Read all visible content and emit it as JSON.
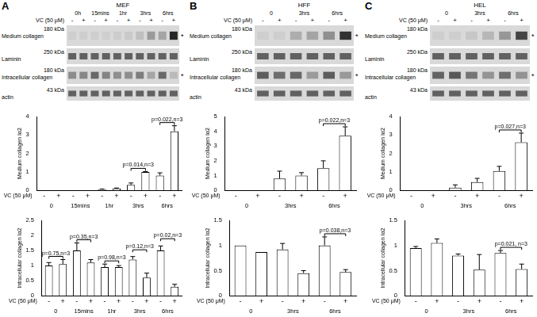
{
  "panels": [
    {
      "letter": "A",
      "cell_line": "MEF",
      "treatment": "VC (50 μM)",
      "times": [
        "0h",
        "15mins",
        "1hr",
        "3hrs",
        "6hrs"
      ],
      "lanes": [
        "-",
        "+"
      ],
      "rows": [
        {
          "name": "Medium collagen",
          "kda_label": "180 kDa",
          "asterisk": "*"
        },
        {
          "name": "Laminin",
          "kda_label": "250 kDa"
        },
        {
          "name": "Intracellular collagen",
          "kda_label": "180 kDa",
          "asterisk": "*"
        },
        {
          "name": "actin",
          "kda_label": "43 kDa"
        }
      ]
    },
    {
      "letter": "B",
      "cell_line": "HFF",
      "treatment": "VC (50 μM)",
      "times": [
        "0",
        "3hrs",
        "6hrs"
      ],
      "lanes": [
        "-",
        "+"
      ],
      "rows": [
        {
          "name": "Medium collagen",
          "kda_label": "180 kDa",
          "asterisk": "*"
        },
        {
          "name": "Laminin",
          "kda_label": "250 kDa"
        },
        {
          "name": "Intracellular collagen",
          "kda_label": "180 kDa",
          "asterisk": "*"
        },
        {
          "name": "actin",
          "kda_label": "43 kDa"
        }
      ]
    },
    {
      "letter": "C",
      "cell_line": "HEL",
      "treatment": "VC (50 μM)",
      "times": [
        "0",
        "3hrs",
        "6hrs"
      ],
      "lanes": [
        "-",
        "+"
      ],
      "rows": [
        {
          "name": "Medium collagen",
          "kda_label": "180 kDa",
          "asterisk": "*"
        },
        {
          "name": "Laminin",
          "kda_label": "250 kDa"
        },
        {
          "name": "Intracellular collagen",
          "kda_label": "180 kDa",
          "asterisk": "*"
        },
        {
          "name": "actin",
          "kda_label": "43 kDa"
        }
      ]
    }
  ],
  "chart_data": [
    {
      "type": "bar",
      "ylabel": "Medium collagen Iα2",
      "treatment": "VC (50 μM)",
      "categories": [
        "-",
        "+",
        "-",
        "+",
        "-",
        "+",
        "-",
        "+",
        "-",
        "+"
      ],
      "groups": [
        "0",
        "15mins",
        "1hr",
        "3hrs",
        "6hrs"
      ],
      "values": [
        0,
        0,
        0,
        0,
        0.05,
        0.1,
        0.3,
        1.0,
        0.8,
        3.2
      ],
      "errors": [
        0,
        0,
        0,
        0,
        0.02,
        0.03,
        0.1,
        0.02,
        0.15,
        0.3
      ],
      "color": "#ffffff",
      "ylim": [
        0,
        4
      ],
      "yticks": [
        0,
        1,
        2,
        3,
        4
      ],
      "grid": false,
      "annotations": [
        {
          "text": "p=0.014,n=3",
          "group": "3hrs"
        },
        {
          "text": "p=0.022,n=3",
          "group": "6hrs"
        }
      ]
    },
    {
      "type": "bar",
      "ylabel": "Intracellular collagen Iα2",
      "treatment": "VC (50 μM)",
      "categories": [
        "-",
        "+",
        "-",
        "+",
        "-",
        "+",
        "-",
        "+",
        "-",
        "+"
      ],
      "groups": [
        "0",
        "15mins",
        "1hr",
        "3hrs",
        "6hrs"
      ],
      "values": [
        1.0,
        1.05,
        1.5,
        1.1,
        0.95,
        0.95,
        1.2,
        0.6,
        1.5,
        0.3
      ],
      "errors": [
        0.1,
        0.15,
        0.25,
        0.1,
        0.1,
        0.05,
        0.1,
        0.15,
        0.15,
        0.08
      ],
      "color": "#ffffff",
      "ylim": [
        0,
        2.5
      ],
      "yticks": [
        0,
        0.5,
        1,
        1.5,
        2,
        2.5
      ],
      "grid": false,
      "annotations": [
        {
          "text": "p=0.75,n=3",
          "group": "0"
        },
        {
          "text": "p=0.35,n=3",
          "group": "15mins"
        },
        {
          "text": "p=0.98,n=3",
          "group": "1hr"
        },
        {
          "text": "p=0.12,n=3",
          "group": "3hrs"
        },
        {
          "text": "p=0.02,n=3",
          "group": "6hrs"
        }
      ]
    },
    {
      "type": "bar",
      "ylabel": "Medium collagen Iα2",
      "treatment": "VC (50 μM)",
      "categories": [
        "-",
        "+",
        "-",
        "+",
        "-",
        "+"
      ],
      "groups": [
        "0",
        "3hrs",
        "6hrs"
      ],
      "values": [
        0,
        0,
        0.8,
        1.0,
        1.5,
        3.7
      ],
      "errors": [
        0,
        0,
        0.5,
        0.2,
        0.5,
        0.6
      ],
      "color": "#ffffff",
      "ylim": [
        0,
        5
      ],
      "yticks": [
        0,
        1,
        2,
        3,
        4,
        5
      ],
      "grid": false,
      "annotations": [
        {
          "text": "p=0.022,n=3",
          "group": "6hrs"
        }
      ]
    },
    {
      "type": "bar",
      "ylabel": "Intracellular collagen Iα2",
      "treatment": "VC (50 μM)",
      "categories": [
        "-",
        "+",
        "-",
        "+",
        "-",
        "+"
      ],
      "groups": [
        "0",
        "3hrs",
        "6hrs"
      ],
      "values": [
        1.0,
        0.87,
        0.92,
        0.45,
        1.0,
        0.47
      ],
      "errors": [
        0,
        0,
        0.12,
        0.05,
        0.17,
        0.05
      ],
      "color": "#ffffff",
      "ylim": [
        0,
        1.5
      ],
      "yticks": [
        0,
        0.5,
        1,
        1.5
      ],
      "grid": false,
      "annotations": [
        {
          "text": "p=0.038,n=3",
          "group": "6hrs"
        }
      ]
    },
    {
      "type": "bar",
      "ylabel": "Medium collagen Iα2",
      "treatment": "VC (50 μM)",
      "categories": [
        "-",
        "+",
        "-",
        "+",
        "-",
        "+"
      ],
      "groups": [
        "0",
        "3hrs",
        "6hrs"
      ],
      "values": [
        0,
        0,
        0.15,
        0.45,
        1.05,
        2.6
      ],
      "errors": [
        0,
        0,
        0.15,
        0.2,
        0.25,
        0.5
      ],
      "color": "#ffffff",
      "ylim": [
        0,
        4
      ],
      "yticks": [
        0,
        1,
        2,
        3,
        4
      ],
      "grid": false,
      "annotations": [
        {
          "text": "p=0.027,n=3",
          "group": "6hrs"
        }
      ]
    },
    {
      "type": "bar",
      "ylabel": "Intracellular collagen Iα2",
      "treatment": "VC (50 μM)",
      "categories": [
        "-",
        "+",
        "-",
        "+",
        "-",
        "+"
      ],
      "groups": [
        "0",
        "3hrs",
        "6hrs"
      ],
      "values": [
        0.95,
        1.05,
        0.8,
        0.52,
        0.85,
        0.53
      ],
      "errors": [
        0.03,
        0.08,
        0.03,
        0.3,
        0.05,
        0.1
      ],
      "color": "#ffffff",
      "ylim": [
        0,
        1.5
      ],
      "yticks": [
        0,
        0.5,
        1,
        1.5
      ],
      "grid": false,
      "annotations": [
        {
          "text": "p=0.021, n=3",
          "group": "6hrs"
        }
      ]
    }
  ]
}
